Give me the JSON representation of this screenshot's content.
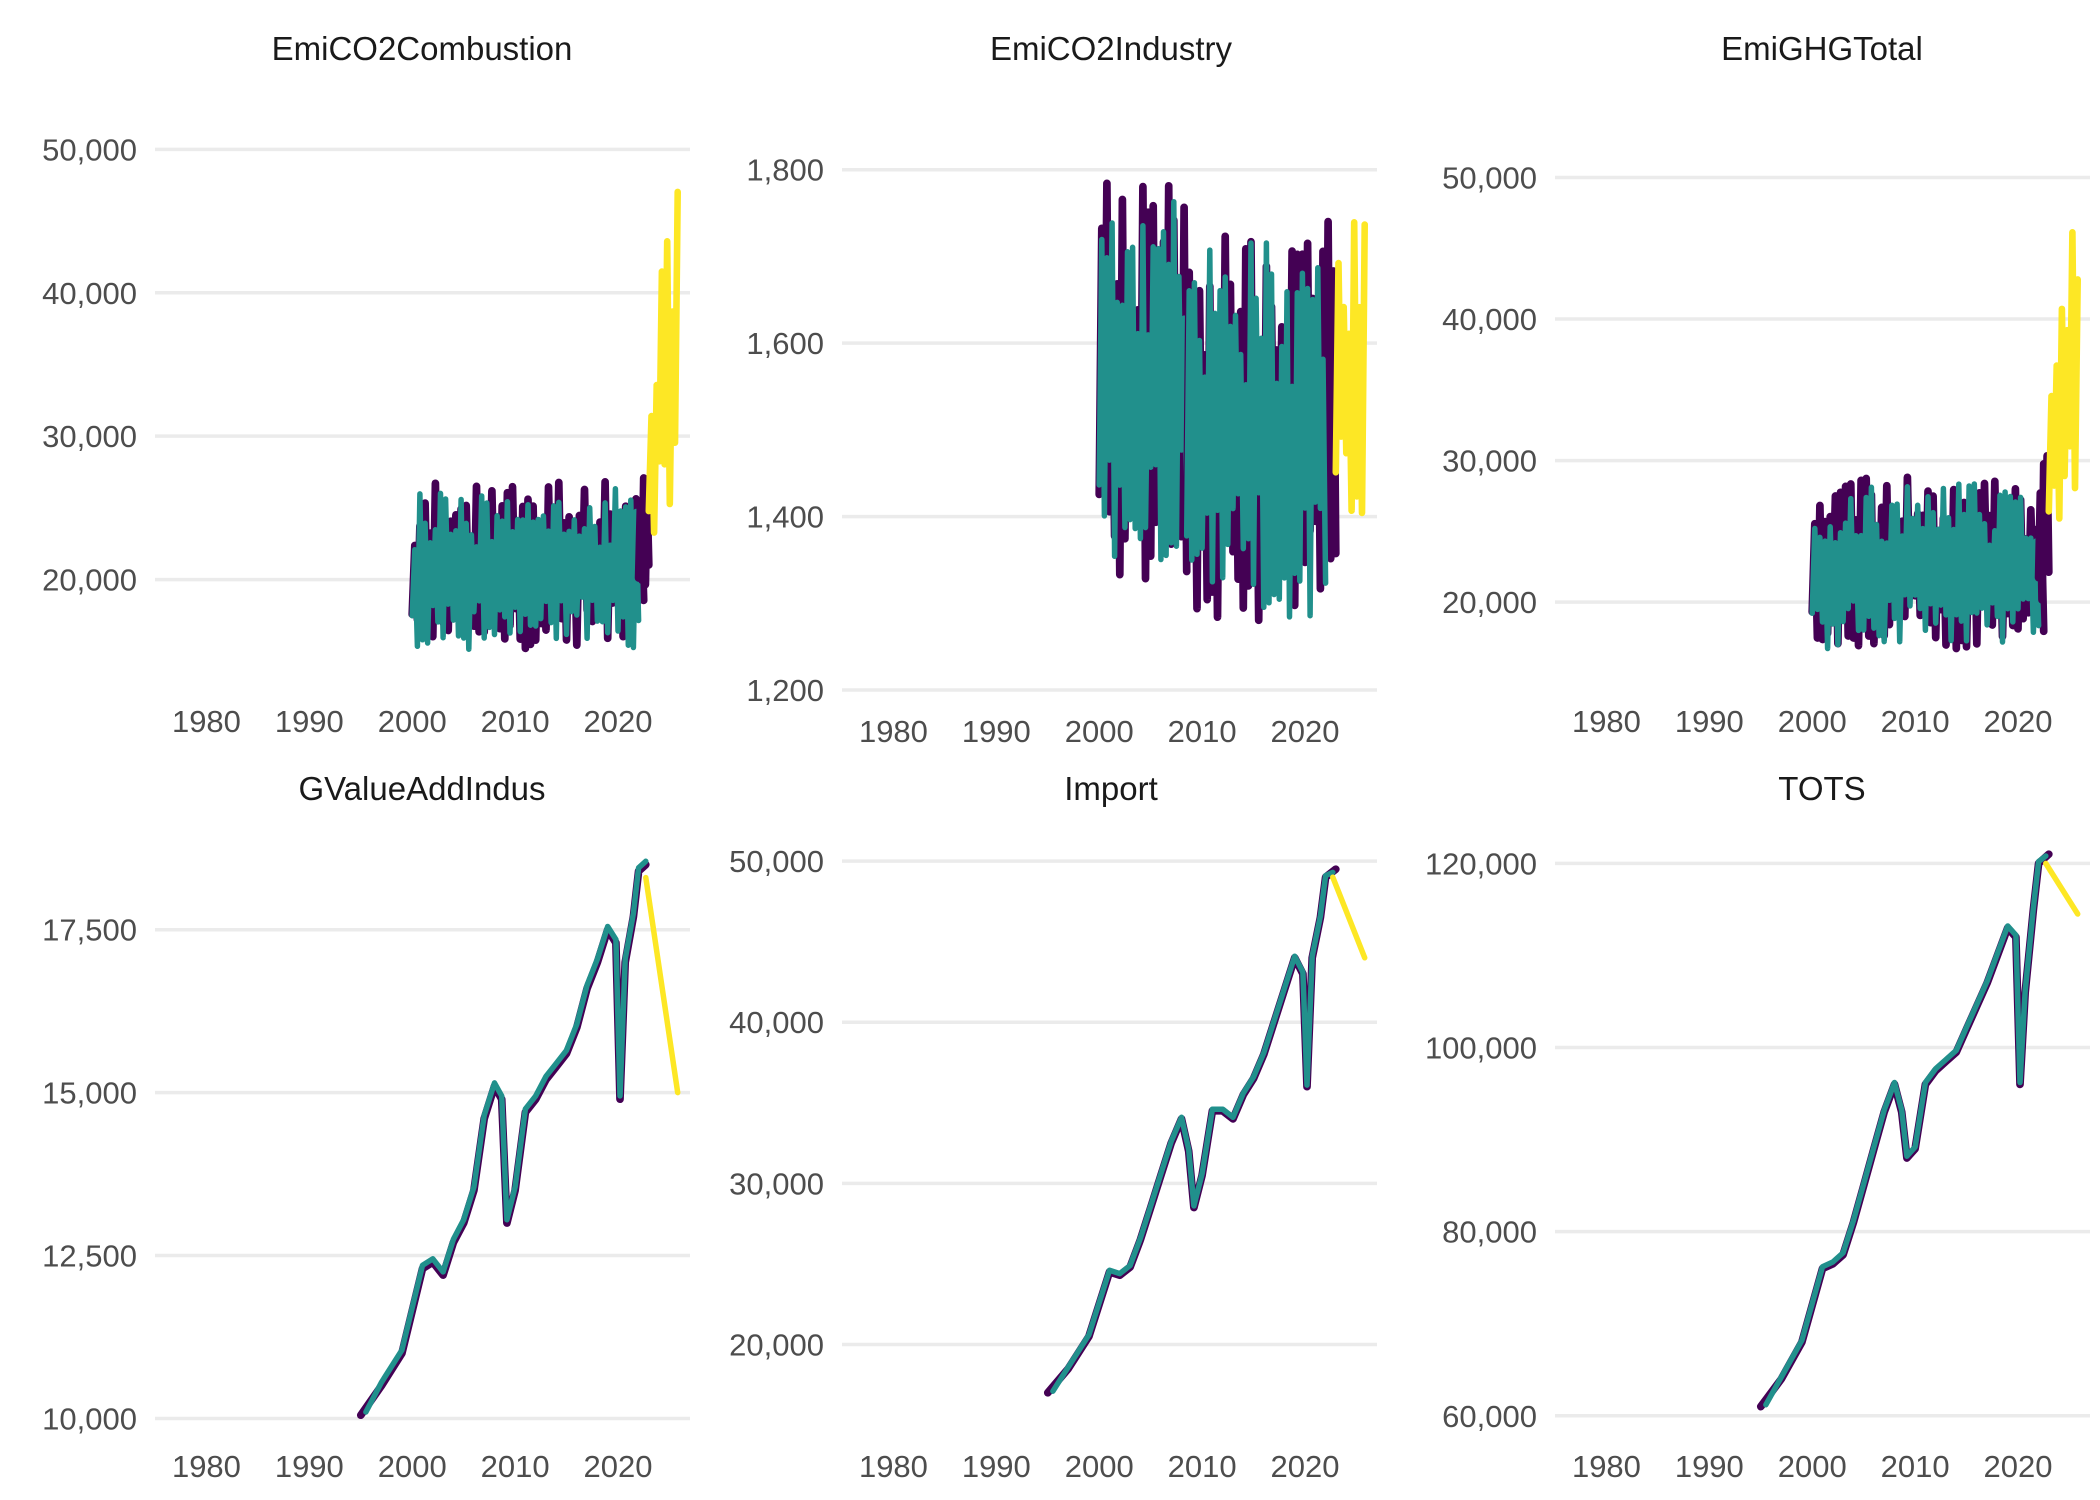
{
  "colors": {
    "actual": "#440154",
    "fitted": "#21908C",
    "forecast": "#FDE725",
    "grid": "#EBEBEB",
    "text": "#4D4D4D",
    "title": "#1A1A1A"
  },
  "chart_data": [
    {
      "type": "line",
      "title": "EmiCO2Combustion",
      "xlabel": "",
      "ylabel": "",
      "xlim": [
        1975,
        2027
      ],
      "ylim": [
        13000,
        51000
      ],
      "xticks": [
        1980,
        1990,
        2000,
        2010,
        2020
      ],
      "yticks": [
        20000,
        30000,
        40000,
        50000
      ],
      "ytick_labels": [
        "20,000",
        "30,000",
        "40,000",
        "50,000"
      ],
      "grid": true,
      "style": "seasonal",
      "segments": [
        {
          "x": [
            2000,
            2022.5
          ],
          "lo": 14500,
          "hi": 27500,
          "color_key": "actual",
          "width": 14
        },
        {
          "x": [
            2000,
            2022.0
          ],
          "lo": 14500,
          "hi": 27000,
          "color_key": "fitted",
          "width": 10
        },
        {
          "x": [
            2022.0,
            2023.0
          ],
          "lo": 17000,
          "hi": 30000,
          "color_key": "actual",
          "width": 14
        },
        {
          "x": [
            2023.0,
            2025.8
          ],
          "lo": 21000,
          "hi": 49500,
          "color_key": "forecast",
          "width": 12,
          "trend": true
        }
      ]
    },
    {
      "type": "line",
      "title": "EmiCO2Industry",
      "xlabel": "",
      "ylabel": "",
      "xlim": [
        1975,
        2027
      ],
      "ylim": [
        1200,
        1840
      ],
      "xticks": [
        1980,
        1990,
        2000,
        2010,
        2020
      ],
      "yticks": [
        1200,
        1400,
        1600,
        1800
      ],
      "ytick_labels": [
        "1,200",
        "1,400",
        "1,600",
        "1,800"
      ],
      "grid": true,
      "style": "seasonal",
      "segments": [
        {
          "x": [
            2000,
            2008.5
          ],
          "lo": 1300,
          "hi": 1820,
          "color_key": "actual",
          "width": 14
        },
        {
          "x": [
            2000,
            2008.5
          ],
          "lo": 1320,
          "hi": 1800,
          "color_key": "fitted",
          "width": 10
        },
        {
          "x": [
            2008.5,
            2023.0
          ],
          "lo": 1240,
          "hi": 1770,
          "color_key": "actual",
          "width": 14
        },
        {
          "x": [
            2008.5,
            2022.0
          ],
          "lo": 1260,
          "hi": 1740,
          "color_key": "fitted",
          "width": 10
        },
        {
          "x": [
            2023.0,
            2025.8
          ],
          "lo": 1350,
          "hi": 1760,
          "color_key": "forecast",
          "width": 12
        }
      ]
    },
    {
      "type": "line",
      "title": "EmiGHGTotal",
      "xlabel": "",
      "ylabel": "",
      "xlim": [
        1975,
        2027
      ],
      "ylim": [
        14500,
        53000
      ],
      "xticks": [
        1980,
        1990,
        2000,
        2010,
        2020
      ],
      "yticks": [
        20000,
        30000,
        40000,
        50000
      ],
      "ytick_labels": [
        "20,000",
        "30,000",
        "40,000",
        "50,000"
      ],
      "grid": true,
      "style": "seasonal",
      "segments": [
        {
          "x": [
            2000,
            2022.5
          ],
          "lo": 16000,
          "hi": 29500,
          "color_key": "actual",
          "width": 14
        },
        {
          "x": [
            2000,
            2022.0
          ],
          "lo": 16000,
          "hi": 29000,
          "color_key": "fitted",
          "width": 10
        },
        {
          "x": [
            2022.0,
            2023.0
          ],
          "lo": 18500,
          "hi": 31500,
          "color_key": "actual",
          "width": 14
        },
        {
          "x": [
            2023.0,
            2025.8
          ],
          "lo": 22500,
          "hi": 51000,
          "color_key": "forecast",
          "width": 12,
          "trend": true
        }
      ]
    },
    {
      "type": "line",
      "title": "GValueAddIndus",
      "xlabel": "",
      "ylabel": "",
      "xlim": [
        1975,
        2027
      ],
      "ylim": [
        9900,
        18800
      ],
      "xticks": [
        1980,
        1990,
        2000,
        2010,
        2020
      ],
      "yticks": [
        10000,
        12500,
        15000,
        17500
      ],
      "ytick_labels": [
        "10,000",
        "12,500",
        "15,000",
        "17,500"
      ],
      "grid": true,
      "style": "path",
      "series": [
        {
          "color_key": "actual",
          "width": 14,
          "x": [
            1995.0,
            1997.0,
            1999.0,
            2001.0,
            2002.0,
            2003.0,
            2004.0,
            2005.0,
            2006.0,
            2007.0,
            2008.0,
            2008.7,
            2009.2,
            2010.0,
            2011.0,
            2012.0,
            2013.0,
            2014.0,
            2015.0,
            2016.0,
            2017.0,
            2018.0,
            2019.0,
            2019.8,
            2020.2,
            2020.7,
            2021.5,
            2022.0,
            2022.7
          ],
          "y": [
            10050,
            10500,
            11000,
            12300,
            12400,
            12200,
            12700,
            13000,
            13500,
            14600,
            15100,
            14900,
            13000,
            13500,
            14700,
            14900,
            15200,
            15400,
            15600,
            16000,
            16600,
            17000,
            17500,
            17300,
            14900,
            17000,
            17700,
            18400,
            18500
          ]
        },
        {
          "color_key": "fitted",
          "width": 10,
          "x": [
            1995.5,
            1997.0,
            1999.0,
            2001.0,
            2002.0,
            2003.0,
            2004.0,
            2005.0,
            2006.0,
            2007.0,
            2008.0,
            2008.7,
            2009.2,
            2010.0,
            2011.0,
            2012.0,
            2013.0,
            2014.0,
            2015.0,
            2016.0,
            2017.0,
            2018.0,
            2019.0,
            2019.8,
            2020.2,
            2020.7,
            2021.5,
            2022.0,
            2022.7
          ],
          "y": [
            10100,
            10550,
            11050,
            12350,
            12450,
            12250,
            12750,
            13050,
            13550,
            14650,
            15150,
            14950,
            13050,
            13550,
            14750,
            14950,
            15250,
            15450,
            15650,
            16050,
            16650,
            17050,
            17550,
            17350,
            14950,
            17050,
            17750,
            18450,
            18550
          ]
        },
        {
          "color_key": "forecast",
          "width": 10,
          "x": [
            2022.7,
            2025.8
          ],
          "y": [
            18300,
            15000
          ]
        }
      ]
    },
    {
      "type": "line",
      "title": "Import",
      "xlabel": "",
      "ylabel": "",
      "xlim": [
        1975,
        2027
      ],
      "ylim": [
        15000,
        51000
      ],
      "xticks": [
        1980,
        1990,
        2000,
        2010,
        2020
      ],
      "yticks": [
        20000,
        30000,
        40000,
        50000
      ],
      "ytick_labels": [
        "20,000",
        "30,000",
        "40,000",
        "50,000"
      ],
      "grid": true,
      "style": "path",
      "series": [
        {
          "color_key": "actual",
          "width": 14,
          "x": [
            1995.0,
            1997.0,
            1999.0,
            2001.0,
            2002.0,
            2003.0,
            2004.0,
            2005.0,
            2006.0,
            2007.0,
            2008.0,
            2008.7,
            2009.2,
            2010.0,
            2011.0,
            2012.0,
            2013.0,
            2014.0,
            2015.0,
            2016.0,
            2017.0,
            2018.0,
            2019.0,
            2019.8,
            2020.2,
            2020.7,
            2021.5,
            2022.0,
            2023.0
          ],
          "y": [
            17000,
            18500,
            20500,
            24500,
            24300,
            24800,
            26500,
            28500,
            30500,
            32500,
            34000,
            32000,
            28500,
            30500,
            34500,
            34500,
            34000,
            35500,
            36500,
            38000,
            40000,
            42000,
            44000,
            43000,
            36000,
            44000,
            46500,
            49000,
            49500
          ]
        },
        {
          "color_key": "fitted",
          "width": 10,
          "x": [
            1995.5,
            1997.0,
            1999.0,
            2001.0,
            2002.0,
            2003.0,
            2004.0,
            2005.0,
            2006.0,
            2007.0,
            2008.0,
            2008.7,
            2009.2,
            2010.0,
            2011.0,
            2012.0,
            2013.0,
            2014.0,
            2015.0,
            2016.0,
            2017.0,
            2018.0,
            2019.0,
            2019.8,
            2020.2,
            2020.7,
            2021.5,
            2022.0,
            2022.7
          ],
          "y": [
            17100,
            18600,
            20600,
            24600,
            24400,
            24900,
            26600,
            28600,
            30600,
            32600,
            34100,
            32100,
            28600,
            30600,
            34600,
            34600,
            34100,
            35600,
            36600,
            38100,
            40100,
            42100,
            44100,
            43100,
            36100,
            44100,
            46600,
            49100,
            49300
          ]
        },
        {
          "color_key": "forecast",
          "width": 10,
          "x": [
            2022.7,
            2025.8
          ],
          "y": [
            49000,
            44000
          ]
        }
      ]
    },
    {
      "type": "line",
      "title": "TOTS",
      "xlabel": "",
      "ylabel": "",
      "xlim": [
        1975,
        2027
      ],
      "ylim": [
        59000,
        122000
      ],
      "xticks": [
        1980,
        1990,
        2000,
        2010,
        2020
      ],
      "yticks": [
        60000,
        80000,
        100000,
        120000
      ],
      "ytick_labels": [
        "60,000",
        "80,000",
        "100,000",
        "120,000"
      ],
      "grid": true,
      "style": "path",
      "series": [
        {
          "color_key": "actual",
          "width": 14,
          "x": [
            1995.0,
            1997.0,
            1999.0,
            2001.0,
            2002.0,
            2003.0,
            2004.0,
            2005.0,
            2006.0,
            2007.0,
            2008.0,
            2008.7,
            2009.2,
            2010.0,
            2011.0,
            2012.0,
            2013.0,
            2014.0,
            2015.0,
            2016.0,
            2017.0,
            2018.0,
            2019.0,
            2019.8,
            2020.2,
            2020.7,
            2021.5,
            2022.0,
            2023.0
          ],
          "y": [
            61000,
            64000,
            68000,
            76000,
            76500,
            77500,
            81000,
            85000,
            89000,
            93000,
            96000,
            93000,
            88000,
            89000,
            96000,
            97500,
            98500,
            99500,
            102000,
            104500,
            107000,
            110000,
            113000,
            112000,
            96000,
            106000,
            115000,
            120000,
            121000
          ]
        },
        {
          "color_key": "fitted",
          "width": 10,
          "x": [
            1995.5,
            1997.0,
            1999.0,
            2001.0,
            2002.0,
            2003.0,
            2004.0,
            2005.0,
            2006.0,
            2007.0,
            2008.0,
            2008.7,
            2009.2,
            2010.0,
            2011.0,
            2012.0,
            2013.0,
            2014.0,
            2015.0,
            2016.0,
            2017.0,
            2018.0,
            2019.0,
            2019.8,
            2020.2,
            2020.7,
            2021.5,
            2022.0,
            2022.7
          ],
          "y": [
            61200,
            64200,
            68200,
            76200,
            76700,
            77700,
            81200,
            85200,
            89200,
            93200,
            96200,
            93200,
            88200,
            89200,
            96200,
            97700,
            98700,
            99700,
            102200,
            104700,
            107200,
            110200,
            113200,
            112200,
            96200,
            106200,
            115200,
            120200,
            120800
          ]
        },
        {
          "color_key": "forecast",
          "width": 10,
          "x": [
            2022.7,
            2025.8
          ],
          "y": [
            120000,
            114500
          ]
        }
      ]
    }
  ]
}
